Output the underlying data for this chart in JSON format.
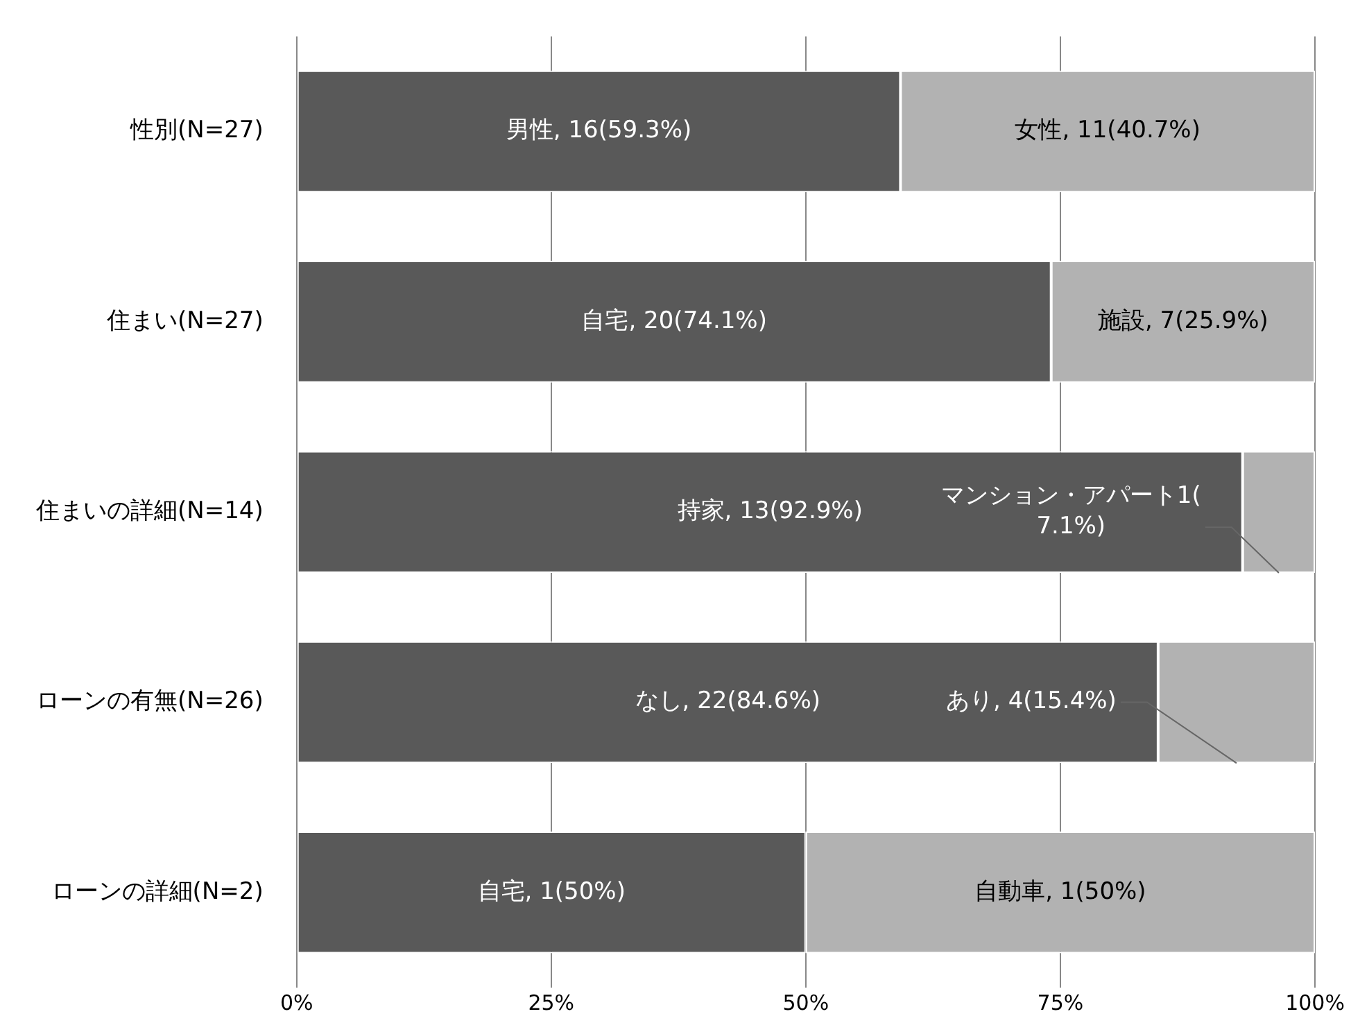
{
  "chart_data": {
    "type": "bar",
    "orientation": "horizontal",
    "stacked": true,
    "categories": [
      "性別(N=27)",
      "住まい(N=27)",
      "住まいの詳細(N=14)",
      "ローンの有無(N=26)",
      "ローンの詳細(N=2)"
    ],
    "series": [
      {
        "color": "#595959",
        "values": [
          59.3,
          74.1,
          92.9,
          84.6,
          50
        ],
        "value_labels": [
          "男性, 16(59.3%)",
          "自宅, 20(74.1%)",
          "持家, 13(92.9%)",
          "なし, 22(84.6%)",
          "自宅, 1(50%)"
        ]
      },
      {
        "color": "#b2b2b2",
        "values": [
          40.7,
          25.9,
          7.1,
          15.4,
          50
        ],
        "value_labels": [
          "女性, 11(40.7%)",
          "施設, 7(25.9%)",
          "マンション・アパート1(7.1%)",
          "あり, 4(15.4%)",
          "自動車, 1(50%)"
        ]
      }
    ],
    "xlim": [
      0,
      100
    ],
    "xticks": [
      {
        "value": 0,
        "label": "0%"
      },
      {
        "value": 25,
        "label": "25%"
      },
      {
        "value": 50,
        "label": "50%"
      },
      {
        "value": 75,
        "label": "75%"
      },
      {
        "value": 100,
        "label": "100%"
      }
    ],
    "grid": "x",
    "legend": false
  }
}
